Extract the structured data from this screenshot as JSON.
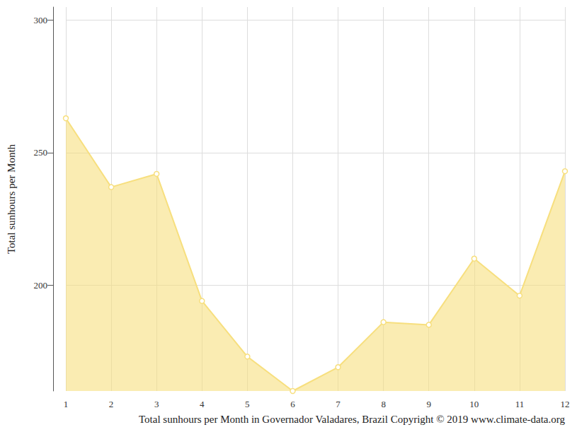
{
  "chart_data": {
    "type": "line",
    "xlabel": "Total sunhours per Month in Governador Valadares, Brazil Copyright © 2019 www.climate-data.org",
    "ylabel": "Total sunhours per Month",
    "categories": [
      "1",
      "2",
      "3",
      "4",
      "5",
      "6",
      "7",
      "8",
      "9",
      "10",
      "11",
      "12"
    ],
    "values": [
      263,
      237,
      242,
      194,
      173,
      160,
      169,
      186,
      185,
      210,
      196,
      243
    ],
    "color": "#f7df7e",
    "marker": "circle",
    "ylim": [
      160,
      305
    ],
    "yticks": [
      200,
      250,
      300
    ],
    "grid": true
  }
}
